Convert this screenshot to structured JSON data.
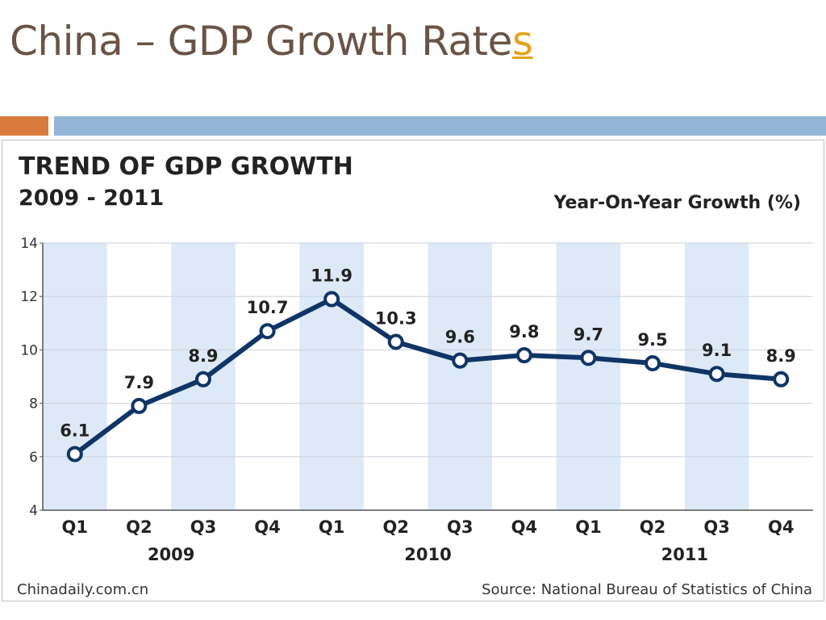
{
  "slide": {
    "title_main": "China – GDP Growth Rate",
    "title_accent": "s"
  },
  "colors": {
    "title": "#6b5344",
    "accent": "#e6a21c",
    "bar_orange": "#d97b3c",
    "bar_blue": "#94b6d6",
    "line": "#0f3566",
    "band": "#dde9f7"
  },
  "chart_data": {
    "type": "line",
    "title": "TREND OF GDP GROWTH",
    "subtitle": "2009 - 2011",
    "ylabel": "Year-On-Year Growth (%)",
    "categories": [
      "Q1",
      "Q2",
      "Q3",
      "Q4",
      "Q1",
      "Q2",
      "Q3",
      "Q4",
      "Q1",
      "Q2",
      "Q3",
      "Q4"
    ],
    "year_labels": [
      "2009",
      "2010",
      "2011"
    ],
    "values": [
      6.1,
      7.9,
      8.9,
      10.7,
      11.9,
      10.3,
      9.6,
      9.8,
      9.7,
      9.5,
      9.1,
      8.9
    ],
    "data_labels": [
      "6.1",
      "7.9",
      "8.9",
      "10.7",
      "11.9",
      "10.3",
      "9.6",
      "9.8",
      "9.7",
      "9.5",
      "9.1",
      "8.9"
    ],
    "ylim": [
      4,
      14
    ],
    "yticks": [
      "4",
      "6",
      "8",
      "10",
      "12",
      "14"
    ],
    "grid": true,
    "source": "Source: National Bureau of Statistics of China",
    "credit": "Chinadaily.com.cn"
  }
}
